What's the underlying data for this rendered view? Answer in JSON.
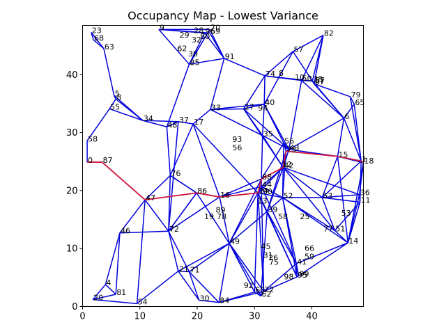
{
  "chart_data": {
    "type": "scatter",
    "title": "Occupancy Map - Lowest Variance",
    "xlabel": "",
    "ylabel": "",
    "xlim": [
      0,
      49
    ],
    "ylim": [
      0,
      48.5
    ],
    "xticks": [
      0,
      10,
      20,
      30,
      40
    ],
    "yticks": [
      0,
      10,
      20,
      30,
      40
    ],
    "grid": false,
    "colors": {
      "edge": "#0000dd",
      "path": "#d6173a"
    },
    "nodes": [
      {
        "id": "0",
        "x": 0.8,
        "y": 24.9
      },
      {
        "id": "1",
        "x": 48.6,
        "y": 25.1
      },
      {
        "id": "4",
        "x": 4.0,
        "y": 3.8
      },
      {
        "id": "5",
        "x": 5.5,
        "y": 36.4
      },
      {
        "id": "6",
        "x": 45.6,
        "y": 32.5
      },
      {
        "id": "8",
        "x": 5.8,
        "y": 35.8
      },
      {
        "id": "9",
        "x": 13.3,
        "y": 47.8
      },
      {
        "id": "11",
        "x": 48.4,
        "y": 18.0
      },
      {
        "id": "14",
        "x": 46.3,
        "y": 11.0
      },
      {
        "id": "15",
        "x": 44.5,
        "y": 25.9
      },
      {
        "id": "16",
        "x": 23.9,
        "y": 18.9
      },
      {
        "id": "17",
        "x": 19.3,
        "y": 31.5
      },
      {
        "id": "18",
        "x": 49.0,
        "y": 24.8
      },
      {
        "id": "20",
        "x": 1.8,
        "y": 1.2
      },
      {
        "id": "21",
        "x": 16.7,
        "y": 6.1
      },
      {
        "id": "22",
        "x": 31.6,
        "y": 2.6
      },
      {
        "id": "23",
        "x": 1.5,
        "y": 47.3
      },
      {
        "id": "24",
        "x": 30.6,
        "y": 19.6
      },
      {
        "id": "27",
        "x": 28.1,
        "y": 34.1
      },
      {
        "id": "30",
        "x": 20.3,
        "y": 1.1
      },
      {
        "id": "33",
        "x": 22.3,
        "y": 34.0
      },
      {
        "id": "34",
        "x": 10.5,
        "y": 32.1
      },
      {
        "id": "35",
        "x": 31.4,
        "y": 29.5
      },
      {
        "id": "36",
        "x": 48.3,
        "y": 19.3
      },
      {
        "id": "37",
        "x": 16.7,
        "y": 31.9
      },
      {
        "id": "38",
        "x": 40.1,
        "y": 38.9
      },
      {
        "id": "39",
        "x": 32.2,
        "y": 16.4
      },
      {
        "id": "40",
        "x": 31.7,
        "y": 34.9
      },
      {
        "id": "41",
        "x": 37.3,
        "y": 7.4
      },
      {
        "id": "42",
        "x": 35.0,
        "y": 24.0
      },
      {
        "id": "43",
        "x": 36.0,
        "y": 27.1
      },
      {
        "id": "44",
        "x": 31.2,
        "y": 20.7
      },
      {
        "id": "46",
        "x": 6.5,
        "y": 12.7
      },
      {
        "id": "47",
        "x": 10.9,
        "y": 18.4
      },
      {
        "id": "48",
        "x": 14.7,
        "y": 31.0
      },
      {
        "id": "49",
        "x": 25.6,
        "y": 10.9
      },
      {
        "id": "50",
        "x": 38.2,
        "y": 39.0
      },
      {
        "id": "51",
        "x": 44.0,
        "y": 13.1
      },
      {
        "id": "52",
        "x": 34.9,
        "y": 18.8
      },
      {
        "id": "53",
        "x": 41.8,
        "y": 18.8
      },
      {
        "id": "54",
        "x": 9.5,
        "y": 0.5
      },
      {
        "id": "55",
        "x": 4.7,
        "y": 34.1
      },
      {
        "id": "56",
        "x": 35.1,
        "y": 28.2
      },
      {
        "id": "57",
        "x": 36.7,
        "y": 44.0
      },
      {
        "id": "58",
        "x": 0.8,
        "y": 28.6
      },
      {
        "id": "60",
        "x": 30.0,
        "y": 2.5
      },
      {
        "id": "62",
        "x": 31.1,
        "y": 1.8
      },
      {
        "id": "63",
        "x": 3.7,
        "y": 44.5
      },
      {
        "id": "65",
        "x": 47.4,
        "y": 34.9
      },
      {
        "id": "67",
        "x": 40.4,
        "y": 38.4
      },
      {
        "id": "68",
        "x": 1.9,
        "y": 46.0
      },
      {
        "id": "69",
        "x": 22.2,
        "y": 47.2
      },
      {
        "id": "70",
        "x": 22.2,
        "y": 47.8
      },
      {
        "id": "71",
        "x": 18.6,
        "y": 6.0
      },
      {
        "id": "72",
        "x": 15.0,
        "y": 13.0
      },
      {
        "id": "73",
        "x": 35.5,
        "y": 26.8
      },
      {
        "id": "74",
        "x": 31.8,
        "y": 39.8
      },
      {
        "id": "76",
        "x": 15.3,
        "y": 22.6
      },
      {
        "id": "79",
        "x": 46.7,
        "y": 36.2
      },
      {
        "id": "81",
        "x": 5.8,
        "y": 2.1
      },
      {
        "id": "82",
        "x": 42.0,
        "y": 46.8
      },
      {
        "id": "84",
        "x": 23.8,
        "y": 0.7
      },
      {
        "id": "85",
        "x": 18.6,
        "y": 41.8
      },
      {
        "id": "86",
        "x": 19.9,
        "y": 19.6
      },
      {
        "id": "87",
        "x": 3.4,
        "y": 24.9
      },
      {
        "id": "88",
        "x": 31.2,
        "y": 22.0
      },
      {
        "id": "91",
        "x": 24.7,
        "y": 42.8
      },
      {
        "id": "95",
        "x": 37.4,
        "y": 5.1
      },
      {
        "id": "96",
        "x": 21.3,
        "y": 47.2
      },
      {
        "id": "99",
        "x": 37.7,
        "y": 5.3
      }
    ],
    "extra_labels": [
      {
        "text": "29",
        "x": 16.8,
        "y": 46.5
      },
      {
        "text": "62",
        "x": 16.4,
        "y": 44.2
      },
      {
        "text": "32",
        "x": 18.9,
        "y": 45.7
      },
      {
        "text": "28",
        "x": 19.3,
        "y": 47.3
      },
      {
        "text": "80",
        "x": 20.4,
        "y": 46.3
      },
      {
        "text": "30",
        "x": 18.3,
        "y": 43.3
      },
      {
        "text": "8",
        "x": 34.1,
        "y": 39.9
      },
      {
        "text": "57",
        "x": 40.4,
        "y": 38.7
      },
      {
        "text": "10",
        "x": 36.9,
        "y": 39.2
      },
      {
        "text": "94",
        "x": 30.5,
        "y": 33.9
      },
      {
        "text": "93",
        "x": 26.0,
        "y": 28.5
      },
      {
        "text": "56",
        "x": 26.0,
        "y": 27.1
      },
      {
        "text": "12",
        "x": 34.7,
        "y": 24.2
      },
      {
        "text": "13",
        "x": 30.4,
        "y": 17.9
      },
      {
        "text": "90",
        "x": 31.3,
        "y": 19.5
      },
      {
        "text": "89",
        "x": 23.1,
        "y": 16.3
      },
      {
        "text": "78",
        "x": 23.3,
        "y": 15.2
      },
      {
        "text": "19",
        "x": 21.1,
        "y": 15.2
      },
      {
        "text": "25",
        "x": 37.8,
        "y": 15.2
      },
      {
        "text": "58",
        "x": 34.0,
        "y": 15.2
      },
      {
        "text": "77",
        "x": 41.9,
        "y": 13.1
      },
      {
        "text": "53",
        "x": 45.0,
        "y": 15.8
      },
      {
        "text": "45",
        "x": 31.0,
        "y": 10.0
      },
      {
        "text": "26",
        "x": 32.3,
        "y": 8.1
      },
      {
        "text": "66",
        "x": 38.6,
        "y": 9.7
      },
      {
        "text": "59",
        "x": 38.6,
        "y": 8.3
      },
      {
        "text": "31",
        "x": 31.4,
        "y": 8.5
      },
      {
        "text": "75",
        "x": 32.4,
        "y": 7.3
      },
      {
        "text": "98",
        "x": 35.0,
        "y": 4.8
      },
      {
        "text": "92",
        "x": 28.0,
        "y": 3.3
      }
    ],
    "edges": [
      [
        "23",
        "68"
      ],
      [
        "68",
        "63"
      ],
      [
        "23",
        "63"
      ],
      [
        "63",
        "5"
      ],
      [
        "5",
        "8"
      ],
      [
        "8",
        "55"
      ],
      [
        "55",
        "58"
      ],
      [
        "58",
        "0"
      ],
      [
        "0",
        "87"
      ],
      [
        "5",
        "34"
      ],
      [
        "8",
        "34"
      ],
      [
        "55",
        "34"
      ],
      [
        "34",
        "48"
      ],
      [
        "34",
        "37"
      ],
      [
        "48",
        "37"
      ],
      [
        "37",
        "17"
      ],
      [
        "17",
        "33"
      ],
      [
        "33",
        "27"
      ],
      [
        "27",
        "40"
      ],
      [
        "40",
        "74"
      ],
      [
        "74",
        "50"
      ],
      [
        "50",
        "38"
      ],
      [
        "38",
        "67"
      ],
      [
        "67",
        "79"
      ],
      [
        "79",
        "65"
      ],
      [
        "65",
        "6"
      ],
      [
        "6",
        "15"
      ],
      [
        "15",
        "1"
      ],
      [
        "1",
        "18"
      ],
      [
        "18",
        "36"
      ],
      [
        "36",
        "11"
      ],
      [
        "11",
        "14"
      ],
      [
        "14",
        "51"
      ],
      [
        "51",
        "53"
      ],
      [
        "53",
        "52"
      ],
      [
        "52",
        "42"
      ],
      [
        "42",
        "73"
      ],
      [
        "73",
        "56"
      ],
      [
        "56",
        "43"
      ],
      [
        "43",
        "35"
      ],
      [
        "35",
        "27"
      ],
      [
        "9",
        "85"
      ],
      [
        "9",
        "96"
      ],
      [
        "9",
        "70"
      ],
      [
        "9",
        "69"
      ],
      [
        "96",
        "91"
      ],
      [
        "70",
        "91"
      ],
      [
        "69",
        "91"
      ],
      [
        "85",
        "91"
      ],
      [
        "91",
        "33"
      ],
      [
        "91",
        "74"
      ],
      [
        "82",
        "57"
      ],
      [
        "82",
        "50"
      ],
      [
        "82",
        "67"
      ],
      [
        "57",
        "38"
      ],
      [
        "57",
        "74"
      ],
      [
        "57",
        "40"
      ],
      [
        "74",
        "27"
      ],
      [
        "40",
        "35"
      ],
      [
        "40",
        "56"
      ],
      [
        "40",
        "43"
      ],
      [
        "50",
        "43"
      ],
      [
        "67",
        "6"
      ],
      [
        "6",
        "1"
      ],
      [
        "65",
        "1"
      ],
      [
        "79",
        "1"
      ],
      [
        "73",
        "15"
      ],
      [
        "15",
        "18"
      ],
      [
        "73",
        "6"
      ],
      [
        "43",
        "15"
      ],
      [
        "42",
        "36"
      ],
      [
        "42",
        "53"
      ],
      [
        "53",
        "11"
      ],
      [
        "53",
        "36"
      ],
      [
        "53",
        "1"
      ],
      [
        "52",
        "51"
      ],
      [
        "52",
        "14"
      ],
      [
        "42",
        "51"
      ],
      [
        "44",
        "52"
      ],
      [
        "24",
        "44"
      ],
      [
        "88",
        "44"
      ],
      [
        "16",
        "24"
      ],
      [
        "16",
        "86"
      ],
      [
        "86",
        "76"
      ],
      [
        "76",
        "47"
      ],
      [
        "47",
        "87"
      ],
      [
        "47",
        "72"
      ],
      [
        "72",
        "46"
      ],
      [
        "72",
        "76"
      ],
      [
        "72",
        "21"
      ],
      [
        "72",
        "86"
      ],
      [
        "21",
        "71"
      ],
      [
        "21",
        "30"
      ],
      [
        "71",
        "84"
      ],
      [
        "30",
        "84"
      ],
      [
        "84",
        "22"
      ],
      [
        "84",
        "60"
      ],
      [
        "60",
        "62"
      ],
      [
        "62",
        "22"
      ],
      [
        "22",
        "95"
      ],
      [
        "95",
        "99"
      ],
      [
        "95",
        "41"
      ],
      [
        "41",
        "99"
      ],
      [
        "41",
        "66"
      ],
      [
        "66",
        "51"
      ],
      [
        "41",
        "14"
      ],
      [
        "95",
        "14"
      ],
      [
        "22",
        "41"
      ],
      [
        "49",
        "22"
      ],
      [
        "49",
        "60"
      ],
      [
        "49",
        "24"
      ],
      [
        "49",
        "16"
      ],
      [
        "49",
        "21"
      ],
      [
        "49",
        "71"
      ],
      [
        "49",
        "84"
      ],
      [
        "49",
        "39"
      ],
      [
        "39",
        "24"
      ],
      [
        "39",
        "52"
      ],
      [
        "39",
        "41"
      ],
      [
        "39",
        "95"
      ],
      [
        "16",
        "44"
      ],
      [
        "86",
        "49"
      ],
      [
        "86",
        "72"
      ],
      [
        "86",
        "16"
      ],
      [
        "76",
        "17"
      ],
      [
        "76",
        "48"
      ],
      [
        "76",
        "86"
      ],
      [
        "20",
        "4"
      ],
      [
        "20",
        "81"
      ],
      [
        "20",
        "54"
      ],
      [
        "4",
        "81"
      ],
      [
        "4",
        "46"
      ],
      [
        "46",
        "47"
      ],
      [
        "54",
        "47"
      ],
      [
        "81",
        "46"
      ],
      [
        "54",
        "21"
      ],
      [
        "33",
        "35"
      ],
      [
        "33",
        "40"
      ],
      [
        "27",
        "43"
      ],
      [
        "27",
        "42"
      ],
      [
        "35",
        "42"
      ],
      [
        "35",
        "88"
      ],
      [
        "56",
        "42"
      ],
      [
        "43",
        "42"
      ],
      [
        "73",
        "52"
      ],
      [
        "73",
        "39"
      ],
      [
        "42",
        "24"
      ],
      [
        "42",
        "44"
      ],
      [
        "42",
        "39"
      ],
      [
        "56",
        "88"
      ],
      [
        "17",
        "16"
      ],
      [
        "17",
        "24"
      ],
      [
        "37",
        "72"
      ],
      [
        "48",
        "85"
      ],
      [
        "85",
        "96"
      ],
      [
        "85",
        "70"
      ],
      [
        "50",
        "6"
      ],
      [
        "38",
        "6"
      ],
      [
        "82",
        "38"
      ],
      [
        "74",
        "38"
      ],
      [
        "1",
        "11"
      ],
      [
        "15",
        "53"
      ],
      [
        "15",
        "14"
      ],
      [
        "18",
        "14"
      ],
      [
        "36",
        "14"
      ],
      [
        "11",
        "51"
      ],
      [
        "52",
        "95"
      ],
      [
        "52",
        "41"
      ],
      [
        "44",
        "41"
      ],
      [
        "24",
        "95"
      ],
      [
        "24",
        "60"
      ],
      [
        "88",
        "16"
      ],
      [
        "88",
        "49"
      ],
      [
        "24",
        "22"
      ],
      [
        "44",
        "22"
      ],
      [
        "39",
        "62"
      ],
      [
        "39",
        "66"
      ],
      [
        "53",
        "66"
      ],
      [
        "49",
        "62"
      ],
      [
        "71",
        "72"
      ],
      [
        "30",
        "71"
      ],
      [
        "16",
        "72"
      ],
      [
        "24",
        "52"
      ],
      [
        "47",
        "86"
      ]
    ],
    "path": [
      "0",
      "87",
      "47",
      "86",
      "16",
      "24",
      "88",
      "42",
      "73",
      "15",
      "1",
      "18"
    ]
  }
}
